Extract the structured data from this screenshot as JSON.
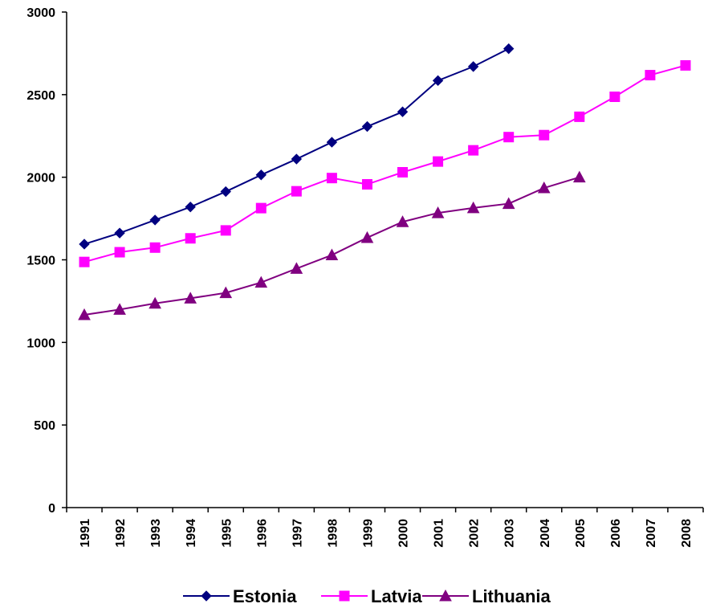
{
  "chart_data": {
    "type": "line",
    "title": "",
    "xlabel": "",
    "ylabel": "",
    "categories": [
      "1991",
      "1992",
      "1993",
      "1994",
      "1995",
      "1996",
      "1997",
      "1998",
      "1999",
      "2000",
      "2001",
      "2002",
      "2003",
      "2004",
      "2005",
      "2006",
      "2007",
      "2008"
    ],
    "ylim": [
      0,
      3000
    ],
    "yticks": [
      0,
      500,
      1000,
      1500,
      2000,
      2500,
      3000
    ],
    "grid": false,
    "legend_position": "bottom",
    "series": [
      {
        "name": "Estonia",
        "color": "#000080",
        "marker": "diamond",
        "values": [
          1595,
          1662,
          1741,
          1820,
          1913,
          2014,
          2110,
          2212,
          2307,
          2396,
          2585,
          2670,
          2778,
          null,
          null,
          null,
          null,
          null
        ]
      },
      {
        "name": "Latvia",
        "color": "#FF00FF",
        "marker": "square",
        "values": [
          1487,
          1546,
          1574,
          1630,
          1678,
          1813,
          1915,
          1995,
          1957,
          2030,
          2095,
          2163,
          2243,
          2255,
          2366,
          2487,
          2618,
          2677
        ]
      },
      {
        "name": "Lithuania",
        "color": "#800080",
        "marker": "triangle",
        "values": [
          1167,
          1199,
          1236,
          1267,
          1300,
          1363,
          1447,
          1529,
          1634,
          1730,
          1784,
          1814,
          1840,
          1935,
          2000,
          null,
          null,
          null
        ]
      }
    ]
  }
}
